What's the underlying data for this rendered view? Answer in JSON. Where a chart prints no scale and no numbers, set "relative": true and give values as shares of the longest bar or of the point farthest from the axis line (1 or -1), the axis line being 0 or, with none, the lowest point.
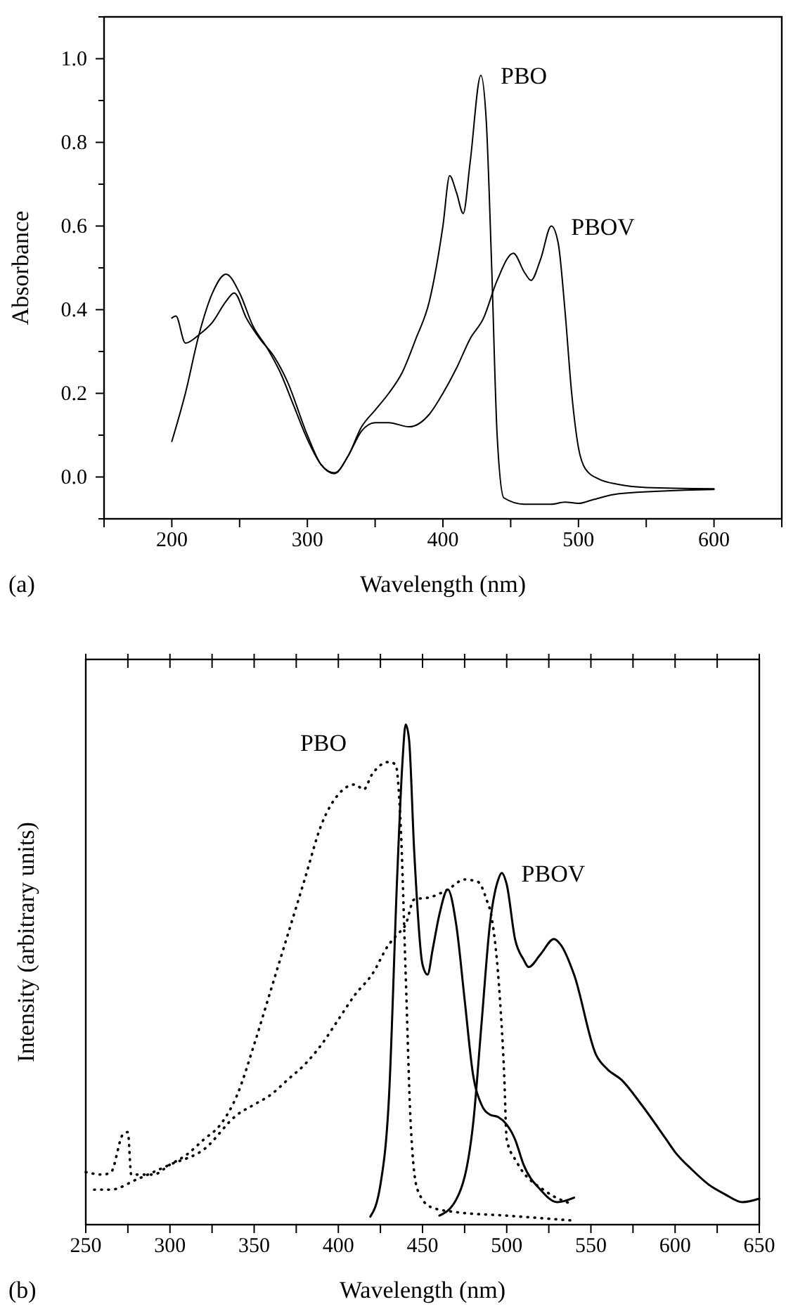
{
  "chart_data": [
    {
      "type": "line",
      "xlabel": "Wavelength (nm)",
      "ylabel": "Absorbance",
      "annotations": [
        "(a)"
      ],
      "xlim": [
        150,
        650
      ],
      "ylim": [
        -0.1,
        1.1
      ],
      "xticks": [
        {
          "value": 150,
          "label": null
        },
        200,
        {
          "value": 250,
          "label": null
        },
        300,
        {
          "value": 350,
          "label": null
        },
        400,
        {
          "value": 450,
          "label": null
        },
        500,
        {
          "value": 550,
          "label": null
        },
        600,
        {
          "value": 650,
          "label": null
        }
      ],
      "yticks": [
        {
          "value": -0.1,
          "label": null
        },
        {
          "value": 0,
          "label": "0.0"
        },
        {
          "value": 0.1,
          "label": null
        },
        0.2,
        {
          "value": 0.3,
          "label": null
        },
        0.4,
        {
          "value": 0.5,
          "label": null
        },
        0.6,
        {
          "value": 0.7,
          "label": null
        },
        0.8,
        {
          "value": 0.9,
          "label": null
        },
        {
          "value": 1.0,
          "label": "1.0"
        },
        {
          "value": 1.1,
          "label": null
        }
      ],
      "grid": false,
      "series": [
        {
          "name": "PBO",
          "color": "#000000",
          "line_style": "solid",
          "x": [
            200,
            210,
            220,
            230,
            240,
            250,
            260,
            270,
            280,
            290,
            300,
            310,
            320,
            330,
            340,
            350,
            360,
            370,
            380,
            390,
            400,
            405,
            410,
            415,
            420,
            428,
            432,
            436,
            440,
            445,
            460,
            480,
            490,
            500,
            510,
            530,
            600
          ],
          "values": [
            0.085,
            0.2,
            0.34,
            0.44,
            0.485,
            0.44,
            0.36,
            0.31,
            0.25,
            0.17,
            0.09,
            0.03,
            0.01,
            0.05,
            0.12,
            0.16,
            0.2,
            0.25,
            0.33,
            0.42,
            0.6,
            0.72,
            0.68,
            0.63,
            0.75,
            0.96,
            0.85,
            0.5,
            0.1,
            -0.05,
            -0.065,
            -0.065,
            -0.06,
            -0.063,
            -0.055,
            -0.04,
            -0.03
          ]
        },
        {
          "name": "PBOV",
          "color": "#000000",
          "line_style": "solid",
          "x": [
            200,
            203,
            210,
            220,
            230,
            240,
            246,
            255,
            265,
            275,
            285,
            300,
            310,
            320,
            330,
            340,
            350,
            360,
            375,
            390,
            400,
            410,
            420,
            430,
            440,
            452,
            460,
            465,
            472,
            480,
            485,
            490,
            495,
            500,
            505,
            515,
            530,
            550,
            600
          ],
          "values": [
            0.38,
            0.385,
            0.32,
            0.34,
            0.37,
            0.42,
            0.44,
            0.38,
            0.33,
            0.29,
            0.23,
            0.1,
            0.03,
            0.008,
            0.05,
            0.11,
            0.13,
            0.13,
            0.12,
            0.15,
            0.2,
            0.26,
            0.33,
            0.38,
            0.47,
            0.535,
            0.49,
            0.47,
            0.52,
            0.6,
            0.56,
            0.4,
            0.2,
            0.07,
            0.02,
            -0.005,
            -0.018,
            -0.025,
            -0.028
          ]
        }
      ]
    },
    {
      "type": "line",
      "relative": true,
      "xlabel": "Wavelength (nm)",
      "ylabel": "Intensity (arbitrary units)",
      "annotations": [
        "(b)"
      ],
      "xlim": [
        250,
        650
      ],
      "xticks": [
        250,
        {
          "value": 275,
          "label": null
        },
        300,
        {
          "value": 325,
          "label": null
        },
        350,
        {
          "value": 375,
          "label": null
        },
        400,
        {
          "value": 425,
          "label": null
        },
        450,
        {
          "value": 475,
          "label": null
        },
        500,
        {
          "value": 525,
          "label": null
        },
        550,
        {
          "value": 575,
          "label": null
        },
        600,
        {
          "value": 625,
          "label": null
        },
        650
      ],
      "grid": false,
      "series": [
        {
          "name": "PBO",
          "color": "#000000",
          "line_style": "dotted",
          "x": [
            250,
            260,
            265,
            272,
            275,
            277,
            290,
            300,
            310,
            320,
            330,
            340,
            350,
            360,
            370,
            380,
            390,
            400,
            410,
            415,
            420,
            430,
            434,
            437,
            440,
            443,
            447,
            455,
            470,
            500,
            540
          ],
          "values": [
            0.105,
            0.1,
            0.105,
            0.18,
            0.185,
            0.1,
            0.1,
            0.12,
            0.14,
            0.17,
            0.2,
            0.26,
            0.36,
            0.47,
            0.58,
            0.69,
            0.8,
            0.86,
            0.88,
            0.87,
            0.9,
            0.925,
            0.92,
            0.8,
            0.5,
            0.2,
            0.07,
            0.035,
            0.025,
            0.018,
            0.008
          ]
        },
        {
          "color": "#000000",
          "line_style": "dotted",
          "x": [
            255,
            265,
            280,
            300,
            320,
            340,
            350,
            360,
            370,
            380,
            390,
            400,
            410,
            420,
            430,
            435,
            440,
            445,
            455,
            465,
            475,
            483,
            488,
            491,
            496,
            498.5,
            500,
            506,
            523,
            538
          ],
          "values": [
            0.07,
            0.07,
            0.09,
            0.12,
            0.15,
            0.22,
            0.24,
            0.26,
            0.29,
            0.32,
            0.36,
            0.41,
            0.46,
            0.5,
            0.56,
            0.58,
            0.6,
            0.65,
            0.655,
            0.67,
            0.69,
            0.685,
            0.65,
            0.615,
            0.45,
            0.3,
            0.17,
            0.125,
            0.067,
            0.042
          ]
        },
        {
          "color": "#000000",
          "line_style": "solid",
          "x": [
            419,
            425,
            430,
            435,
            438,
            440,
            442,
            445,
            450,
            453,
            456,
            460,
            465,
            470,
            475,
            480,
            485,
            490,
            495,
            500,
            505,
            510,
            520,
            530,
            540
          ],
          "values": [
            0.016,
            0.08,
            0.25,
            0.7,
            0.92,
            1.0,
            0.97,
            0.75,
            0.52,
            0.5,
            0.55,
            0.62,
            0.67,
            0.6,
            0.45,
            0.3,
            0.24,
            0.22,
            0.215,
            0.2,
            0.17,
            0.12,
            0.07,
            0.045,
            0.054
          ]
        },
        {
          "name": "PBOV",
          "color": "#000000",
          "line_style": "solid",
          "x": [
            460,
            470,
            480,
            485,
            490,
            495,
            497,
            500,
            505,
            510,
            513,
            520,
            528,
            532,
            540,
            553,
            560,
            568,
            580,
            594,
            600,
            610,
            620,
            630,
            640,
            650
          ],
          "values": [
            0.018,
            0.05,
            0.2,
            0.4,
            0.6,
            0.69,
            0.703,
            0.68,
            0.57,
            0.53,
            0.515,
            0.54,
            0.571,
            0.56,
            0.5,
            0.34,
            0.31,
            0.29,
            0.24,
            0.174,
            0.145,
            0.11,
            0.08,
            0.06,
            0.045,
            0.052
          ]
        }
      ]
    }
  ]
}
